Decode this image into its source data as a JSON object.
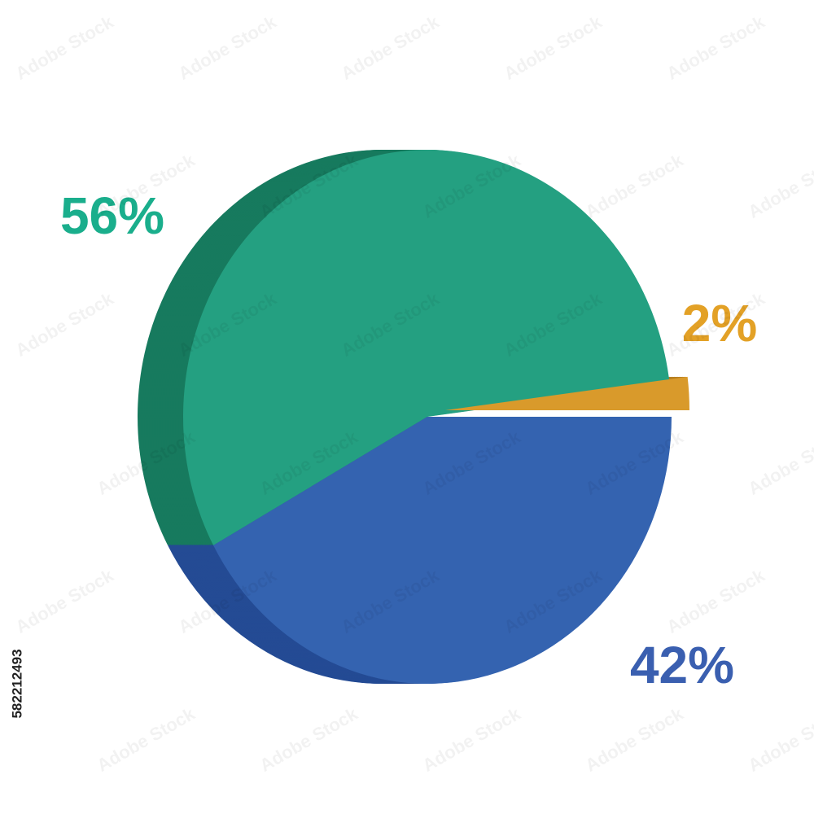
{
  "chart_data": {
    "type": "pie3d",
    "values": [
      56,
      42,
      2
    ],
    "value_labels": [
      "56%",
      "42%",
      "2%"
    ],
    "colors": [
      "#24a081",
      "#3463b0",
      "#d99a2b"
    ],
    "side_colors": [
      "#177a5e",
      "#244b94",
      "#b57d1e"
    ],
    "label_colors": [
      "#1aae8c",
      "#3a5fb0",
      "#e3a126"
    ]
  },
  "watermark": "Adobe Stock",
  "stock_id": "582212493"
}
